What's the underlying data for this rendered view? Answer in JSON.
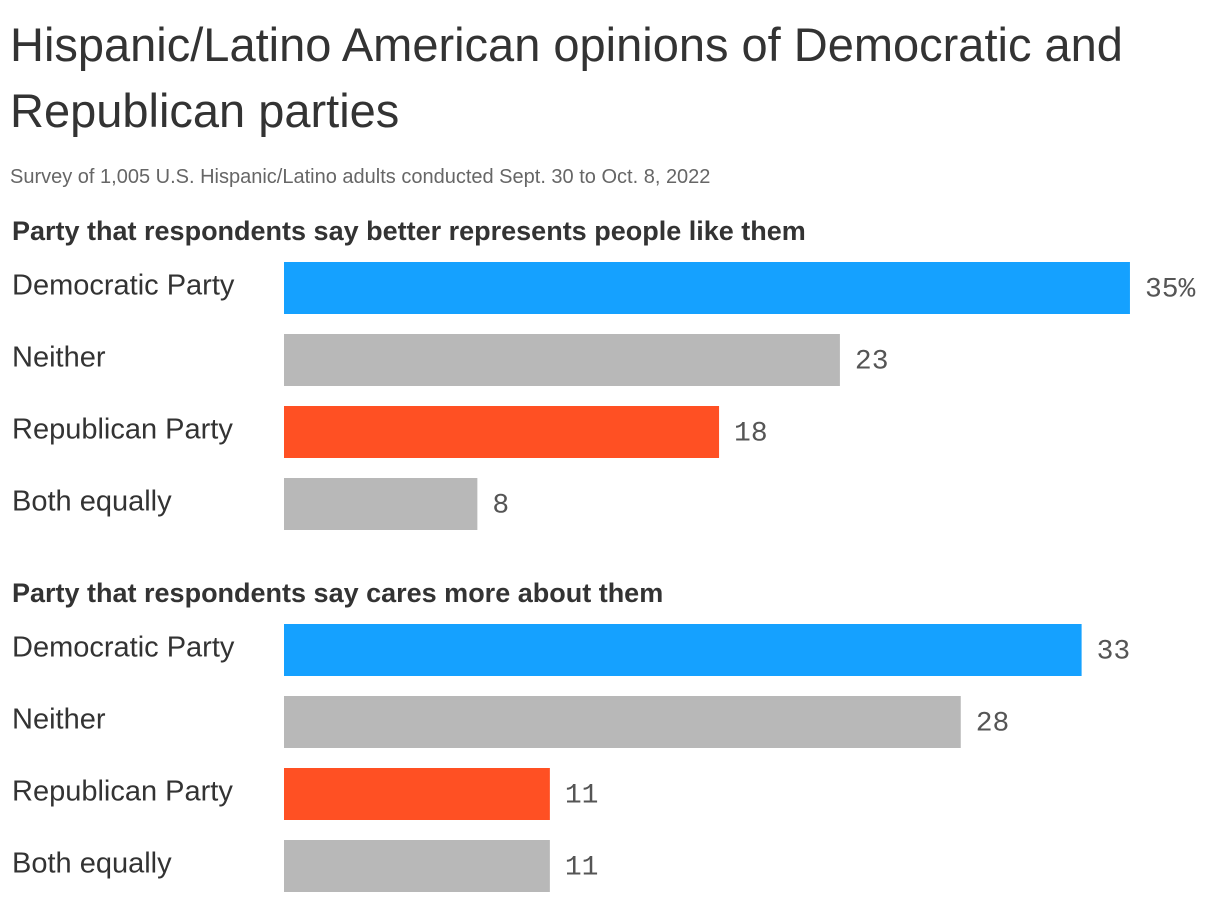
{
  "title": "Hispanic/Latino American opinions of Democratic and Republican parties",
  "subtitle": "Survey of 1,005 U.S. Hispanic/Latino adults conducted Sept. 30 to Oct. 8, 2022",
  "chart_data": [
    {
      "type": "bar",
      "orientation": "horizontal",
      "title": "Party that respondents say better represents people like them",
      "categories": [
        "Democratic Party",
        "Neither",
        "Republican Party",
        "Both equally"
      ],
      "values": [
        35,
        23,
        18,
        8
      ],
      "value_labels": [
        "35%",
        "23",
        "18",
        "8"
      ],
      "colors": [
        "#15a1ff",
        "#b8b8b8",
        "#ff5023",
        "#b8b8b8"
      ]
    },
    {
      "type": "bar",
      "orientation": "horizontal",
      "title": "Party that respondents say cares more about them",
      "categories": [
        "Democratic Party",
        "Neither",
        "Republican Party",
        "Both equally"
      ],
      "values": [
        33,
        28,
        11,
        11
      ],
      "colors": [
        "#15a1ff",
        "#b8b8b8",
        "#ff5023",
        "#b8b8b8"
      ]
    }
  ]
}
